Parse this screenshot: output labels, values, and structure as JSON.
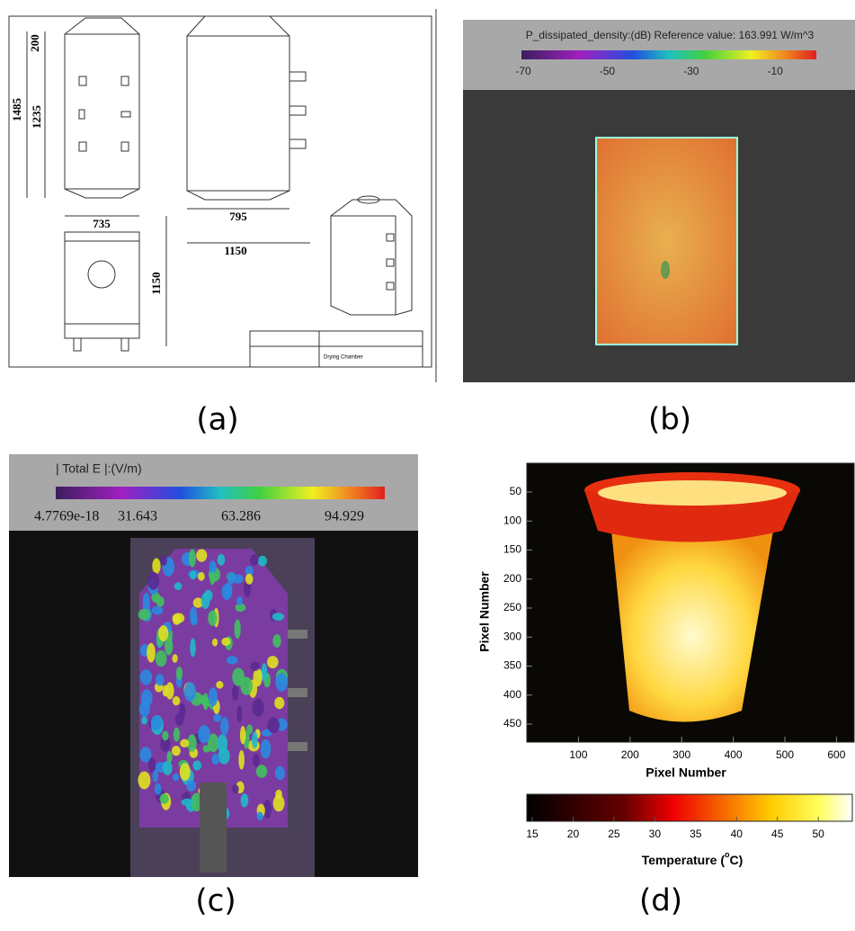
{
  "panels": [
    {
      "label": "(a)",
      "dimensions": [
        200,
        1485,
        1235,
        735,
        1150,
        795,
        1150
      ],
      "title_block": "Drying Chamber"
    },
    {
      "label": "(b)",
      "colorbar_title": "P_dissipated_density:(dB) Reference value: 163.991 W/m^3",
      "colorbar_ticks": [
        -70,
        -50,
        -30,
        -10
      ]
    },
    {
      "label": "(c)",
      "colorbar_title": "| Total E |:(V/m)",
      "colorbar_ticks": [
        4.7769e-18,
        31.643,
        63.286,
        94.929
      ]
    },
    {
      "label": "(d)",
      "ylabel": "Pixel Number",
      "yticks": [
        50,
        100,
        150,
        200,
        250,
        300,
        350,
        400,
        450
      ],
      "xlabel": "Pixel Number",
      "xticks": [
        100,
        200,
        300,
        400,
        500,
        600
      ],
      "colorbar_ticks": [
        15,
        20,
        25,
        30,
        35,
        40,
        45,
        50
      ],
      "colorbar_label": [
        "Temperature (",
        "o",
        "C)"
      ]
    }
  ]
}
